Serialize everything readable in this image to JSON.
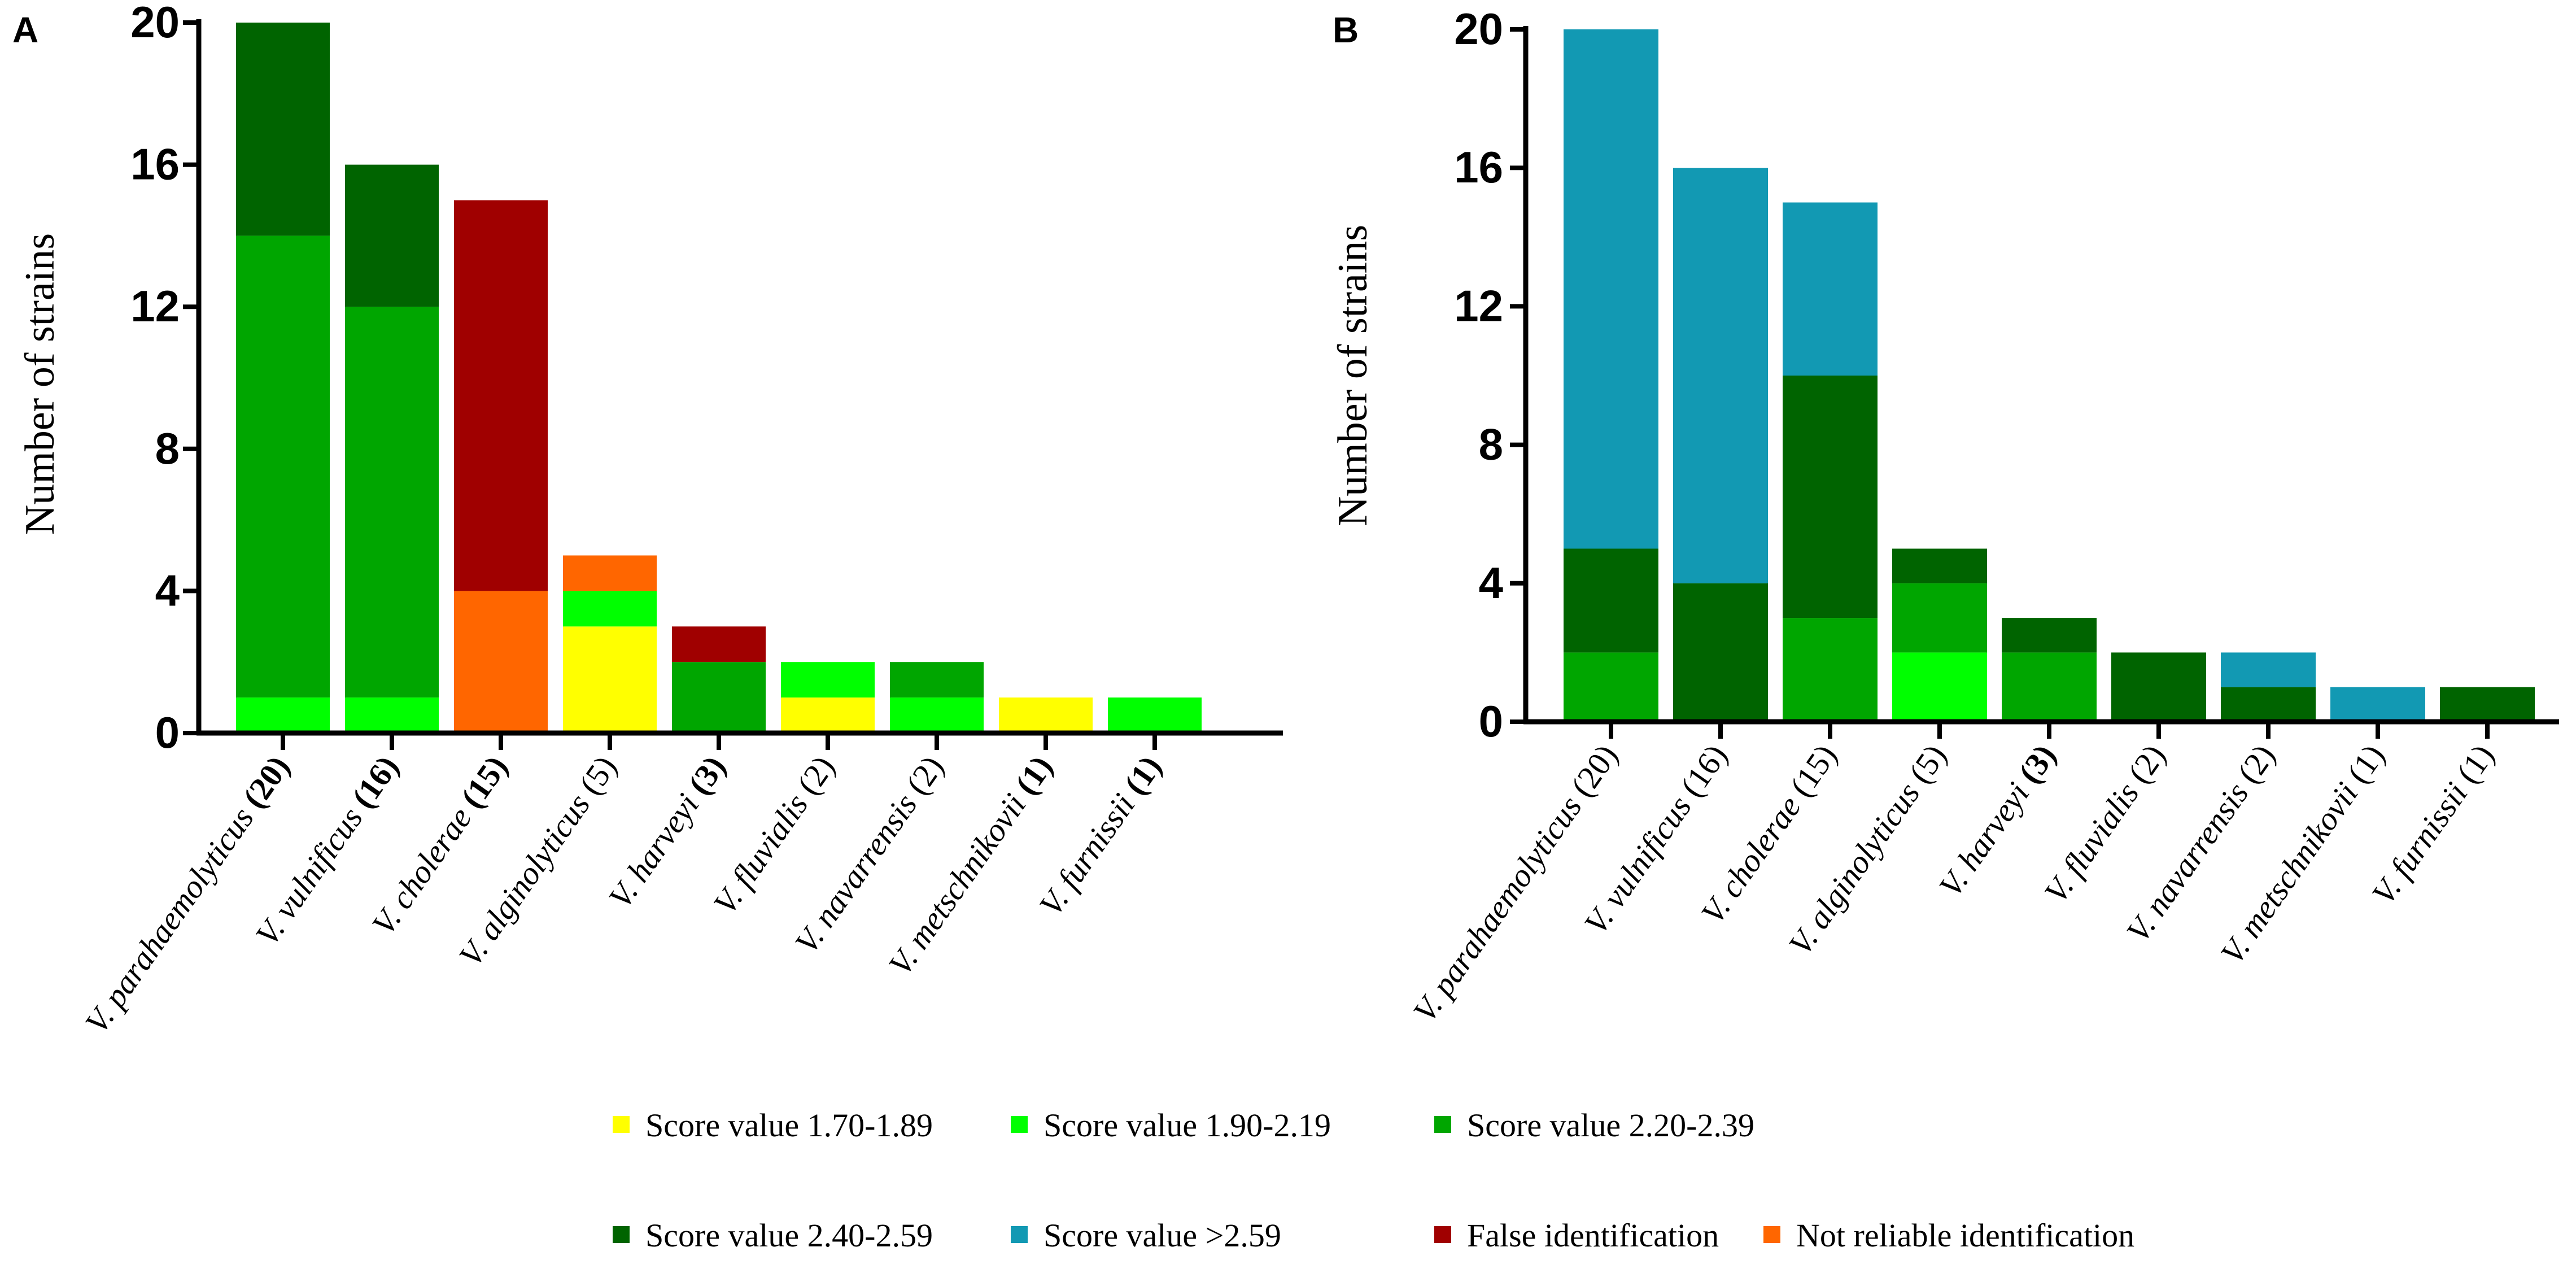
{
  "legend": [
    {
      "key": "s170",
      "label": "Score value 1.70-1.89",
      "color": "#FFFF00"
    },
    {
      "key": "s190",
      "label": "Score value 1.90-2.19",
      "color": "#00FF00"
    },
    {
      "key": "s220",
      "label": "Score value 2.20-2.39",
      "color": "#00A600"
    },
    {
      "key": "s240",
      "label": "Score value 2.40-2.59",
      "color": "#006400"
    },
    {
      "key": "s259",
      "label": "Score value >2.59",
      "color": "#1299B3"
    },
    {
      "key": "false",
      "label": "False identification",
      "color": "#A00000"
    },
    {
      "key": "nr",
      "label": "Not reliable identification",
      "color": "#FF6600"
    }
  ],
  "chart_data": [
    {
      "panel": "A",
      "type": "bar",
      "stacked": true,
      "ylabel": "Number of strains",
      "ylim": [
        0,
        20
      ],
      "yticks": [
        "0",
        "4",
        "8",
        "12",
        "16",
        "20"
      ],
      "categories": [
        {
          "species": "V. parahaemolyticus",
          "count": "(20)",
          "count_bold": true
        },
        {
          "species": "V. vulnificus",
          "count": "(16)",
          "count_bold": true
        },
        {
          "species": "V. cholerae",
          "count": "(15)",
          "count_bold": true
        },
        {
          "species": "V. alginolyticus",
          "count": "(5)",
          "count_bold": false
        },
        {
          "species": "V. harveyi",
          "count": "(3)",
          "count_bold": true
        },
        {
          "species": "V. fluvialis",
          "count": "(2)",
          "count_bold": false
        },
        {
          "species": "V. navarrensis",
          "count": "(2)",
          "count_bold": false
        },
        {
          "species": "V. metschnikovii",
          "count": "(1)",
          "count_bold": true
        },
        {
          "species": "V. furnissii",
          "count": "(1)",
          "count_bold": true
        }
      ],
      "series": [
        {
          "key": "s170",
          "name": "Score value 1.70-1.89",
          "values": [
            0,
            0,
            0,
            3,
            0,
            1,
            0,
            1,
            0
          ]
        },
        {
          "key": "s190",
          "name": "Score value 1.90-2.19",
          "values": [
            1,
            1,
            0,
            1,
            0,
            1,
            1,
            0,
            1
          ]
        },
        {
          "key": "s220",
          "name": "Score value 2.20-2.39",
          "values": [
            13,
            11,
            0,
            0,
            2,
            0,
            1,
            0,
            0
          ]
        },
        {
          "key": "s240",
          "name": "Score value 2.40-2.59",
          "values": [
            6,
            4,
            0,
            0,
            0,
            0,
            0,
            0,
            0
          ]
        },
        {
          "key": "s259",
          "name": "Score value >2.59",
          "values": [
            0,
            0,
            0,
            0,
            0,
            0,
            0,
            0,
            0
          ]
        },
        {
          "key": "nr",
          "name": "Not reliable identification",
          "values": [
            0,
            0,
            4,
            1,
            0,
            0,
            0,
            0,
            0
          ]
        },
        {
          "key": "false",
          "name": "False identification",
          "values": [
            0,
            0,
            11,
            0,
            1,
            0,
            0,
            0,
            0
          ]
        }
      ]
    },
    {
      "panel": "B",
      "type": "bar",
      "stacked": true,
      "ylabel": "Number of strains",
      "ylim": [
        0,
        20
      ],
      "yticks": [
        "0",
        "4",
        "8",
        "12",
        "16",
        "20"
      ],
      "categories": [
        {
          "species": "V. parahaemolyticus",
          "count": "(20)",
          "count_bold": false
        },
        {
          "species": "V. vulnificus",
          "count": "(16)",
          "count_bold": false
        },
        {
          "species": "V. cholerae",
          "count": "(15)",
          "count_bold": false
        },
        {
          "species": "V. alginolyticus",
          "count": "(5)",
          "count_bold": false
        },
        {
          "species": "V. harveyi",
          "count": "(3)",
          "count_bold": true
        },
        {
          "species": "V. fluvialis",
          "count": "(2)",
          "count_bold": false
        },
        {
          "species": "V. navarrensis",
          "count": "(2)",
          "count_bold": false
        },
        {
          "species": "V. metschnikovii",
          "count": "(1)",
          "count_bold": false
        },
        {
          "species": "V. furnissii",
          "count": "(1)",
          "count_bold": false
        }
      ],
      "series": [
        {
          "key": "s170",
          "name": "Score value 1.70-1.89",
          "values": [
            0,
            0,
            0,
            0,
            0,
            0,
            0,
            0,
            0
          ]
        },
        {
          "key": "s190",
          "name": "Score value 1.90-2.19",
          "values": [
            0,
            0,
            0,
            2,
            0,
            0,
            0,
            0,
            0
          ]
        },
        {
          "key": "s220",
          "name": "Score value 2.20-2.39",
          "values": [
            2,
            0,
            3,
            2,
            2,
            0,
            0,
            0,
            0
          ]
        },
        {
          "key": "s240",
          "name": "Score value 2.40-2.59",
          "values": [
            3,
            4,
            7,
            1,
            1,
            2,
            1,
            0,
            1
          ]
        },
        {
          "key": "s259",
          "name": "Score value >2.59",
          "values": [
            15,
            12,
            5,
            0,
            0,
            0,
            1,
            1,
            0
          ]
        },
        {
          "key": "nr",
          "name": "Not reliable identification",
          "values": [
            0,
            0,
            0,
            0,
            0,
            0,
            0,
            0,
            0
          ]
        },
        {
          "key": "false",
          "name": "False identification",
          "values": [
            0,
            0,
            0,
            0,
            0,
            0,
            0,
            0,
            0
          ]
        }
      ]
    }
  ]
}
